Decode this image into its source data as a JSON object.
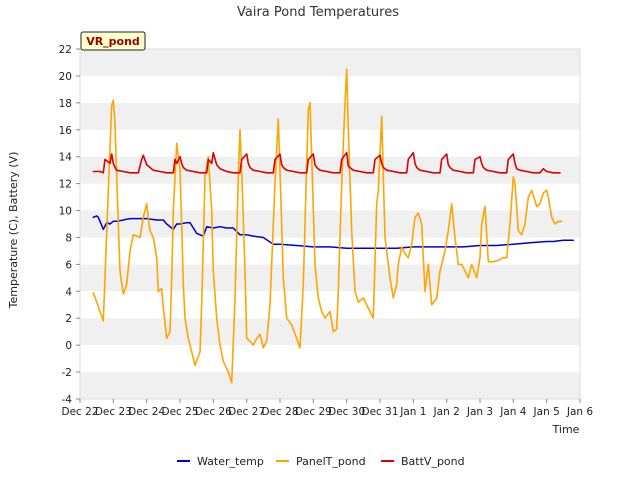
{
  "chart_data": {
    "type": "line",
    "title": "Vaira Pond Temperatures",
    "station_label": "VR_pond",
    "xlabel": "Time",
    "ylabel": "Temperature (C), Battery (V)",
    "xlim": [
      0,
      15
    ],
    "ylim": [
      -4,
      22
    ],
    "yticks": [
      -4,
      -2,
      0,
      2,
      4,
      6,
      8,
      10,
      12,
      14,
      16,
      18,
      20,
      22
    ],
    "xticks": [
      {
        "value": 0,
        "label": "Dec 22"
      },
      {
        "value": 1,
        "label": "Dec 23"
      },
      {
        "value": 2,
        "label": "Dec 24"
      },
      {
        "value": 3,
        "label": "Dec 25"
      },
      {
        "value": 4,
        "label": "Dec 26"
      },
      {
        "value": 5,
        "label": "Dec 27"
      },
      {
        "value": 6,
        "label": "Dec 28"
      },
      {
        "value": 7,
        "label": "Dec 29"
      },
      {
        "value": 8,
        "label": "Dec 30"
      },
      {
        "value": 9,
        "label": "Dec 31"
      },
      {
        "value": 10,
        "label": "Jan 1"
      },
      {
        "value": 11,
        "label": "Jan 2"
      },
      {
        "value": 12,
        "label": "Jan 3"
      },
      {
        "value": 13,
        "label": "Jan 4"
      },
      {
        "value": 14,
        "label": "Jan 5"
      },
      {
        "value": 15,
        "label": "Jan 6"
      }
    ],
    "grid": "horizontal-bands",
    "legend_position": "bottom",
    "series": [
      {
        "name": "Water_temp",
        "color": "#0000cc",
        "x": [
          0.4,
          0.5,
          0.55,
          0.6,
          0.7,
          0.8,
          0.9,
          1.0,
          1.1,
          1.3,
          1.5,
          1.8,
          2.0,
          2.3,
          2.5,
          2.6,
          2.8,
          2.9,
          3.0,
          3.2,
          3.3,
          3.5,
          3.7,
          3.8,
          4.0,
          4.2,
          4.4,
          4.6,
          4.8,
          5.0,
          5.2,
          5.5,
          5.8,
          6.0,
          6.5,
          7.0,
          7.5,
          8.0,
          8.5,
          9.0,
          9.5,
          10.0,
          10.5,
          11.0,
          11.5,
          12.0,
          12.5,
          13.0,
          13.5,
          14.0,
          14.2,
          14.5,
          14.8
        ],
        "y": [
          9.5,
          9.6,
          9.5,
          9.2,
          8.6,
          9.1,
          9.0,
          9.2,
          9.2,
          9.3,
          9.4,
          9.4,
          9.4,
          9.3,
          9.3,
          9.0,
          8.6,
          9.0,
          9.0,
          9.1,
          9.1,
          8.3,
          8.1,
          8.8,
          8.7,
          8.8,
          8.7,
          8.7,
          8.2,
          8.2,
          8.1,
          8.0,
          7.5,
          7.5,
          7.4,
          7.3,
          7.3,
          7.2,
          7.2,
          7.2,
          7.2,
          7.3,
          7.3,
          7.3,
          7.3,
          7.4,
          7.4,
          7.5,
          7.6,
          7.7,
          7.7,
          7.8,
          7.8
        ]
      },
      {
        "name": "PanelT_pond",
        "color": "#ffa500",
        "x": [
          0.4,
          0.5,
          0.6,
          0.7,
          0.75,
          0.85,
          0.95,
          1.0,
          1.05,
          1.1,
          1.2,
          1.3,
          1.4,
          1.5,
          1.6,
          1.8,
          1.9,
          2.0,
          2.05,
          2.1,
          2.2,
          2.3,
          2.35,
          2.45,
          2.5,
          2.6,
          2.7,
          2.75,
          2.8,
          2.9,
          3.0,
          3.05,
          3.1,
          3.15,
          3.25,
          3.35,
          3.45,
          3.6,
          3.65,
          3.75,
          3.85,
          3.95,
          4.0,
          4.1,
          4.2,
          4.3,
          4.45,
          4.55,
          4.65,
          4.75,
          4.8,
          4.85,
          4.95,
          5.0,
          5.1,
          5.2,
          5.3,
          5.4,
          5.5,
          5.6,
          5.7,
          5.85,
          5.95,
          6.0,
          6.1,
          6.2,
          6.35,
          6.5,
          6.6,
          6.7,
          6.8,
          6.85,
          6.9,
          6.95,
          7.05,
          7.15,
          7.25,
          7.35,
          7.5,
          7.6,
          7.7,
          7.75,
          7.85,
          7.95,
          8.0,
          8.05,
          8.15,
          8.25,
          8.35,
          8.5,
          8.6,
          8.7,
          8.8,
          8.9,
          8.95,
          9.05,
          9.15,
          9.3,
          9.4,
          9.5,
          9.55,
          9.65,
          9.75,
          9.85,
          9.95,
          10.05,
          10.15,
          10.25,
          10.35,
          10.45,
          10.55,
          10.7,
          10.8,
          10.9,
          10.95,
          11.05,
          11.15,
          11.25,
          11.35,
          11.45,
          11.55,
          11.65,
          11.75,
          11.9,
          12.0,
          12.05,
          12.15,
          12.25,
          12.4,
          12.55,
          12.7,
          12.8,
          12.9,
          13.0,
          13.05,
          13.15,
          13.25,
          13.35,
          13.45,
          13.55,
          13.7,
          13.8,
          13.9,
          14.0,
          14.05,
          14.15,
          14.25,
          14.35,
          14.45
        ],
        "y": [
          3.9,
          3.2,
          2.5,
          1.8,
          5.0,
          11.5,
          17.8,
          18.2,
          16.5,
          12.5,
          5.5,
          3.8,
          4.5,
          7.0,
          8.2,
          8.0,
          9.5,
          10.5,
          9.5,
          8.5,
          8.0,
          6.5,
          4.0,
          4.2,
          2.8,
          0.5,
          1.0,
          5.0,
          10.0,
          15.0,
          13.0,
          9.0,
          4.5,
          2.0,
          0.5,
          -0.5,
          -1.5,
          -0.5,
          3.0,
          12.5,
          14.0,
          10.0,
          5.5,
          2.0,
          0.0,
          -1.2,
          -2.0,
          -2.8,
          3.5,
          12.5,
          16.0,
          13.0,
          5.5,
          0.5,
          0.3,
          0.0,
          0.5,
          0.8,
          -0.2,
          0.3,
          3.0,
          12.0,
          16.8,
          13.0,
          5.0,
          2.0,
          1.5,
          0.5,
          -0.2,
          4.5,
          13.5,
          17.5,
          18.0,
          14.0,
          6.0,
          3.5,
          2.5,
          2.0,
          2.5,
          1.0,
          1.2,
          4.0,
          12.0,
          18.0,
          20.5,
          16.0,
          8.5,
          4.0,
          3.2,
          3.5,
          3.0,
          2.5,
          2.0,
          10.5,
          11.5,
          17.0,
          8.0,
          5.0,
          3.5,
          4.5,
          6.0,
          7.3,
          6.8,
          6.5,
          7.5,
          9.5,
          9.8,
          9.0,
          4.0,
          6.0,
          3.0,
          3.5,
          5.5,
          6.5,
          7.0,
          8.5,
          10.5,
          8.0,
          6.0,
          6.0,
          5.5,
          5.0,
          6.0,
          5.0,
          6.5,
          9.0,
          10.3,
          6.2,
          6.2,
          6.3,
          6.5,
          6.5,
          9.0,
          12.5,
          12.0,
          8.5,
          8.2,
          9.0,
          11.0,
          11.5,
          10.3,
          10.5,
          11.3,
          11.5,
          11.0,
          9.5,
          9.0,
          9.2,
          9.2
        ],
        "width": 1.6
      },
      {
        "name": "BattV_pond",
        "color": "#dd0000",
        "x": [
          0.4,
          0.6,
          0.7,
          0.75,
          0.9,
          0.95,
          1.0,
          1.05,
          1.1,
          1.3,
          1.5,
          1.75,
          1.85,
          1.9,
          2.0,
          2.1,
          2.2,
          2.4,
          2.6,
          2.8,
          2.85,
          2.9,
          3.0,
          3.05,
          3.1,
          3.2,
          3.4,
          3.6,
          3.8,
          3.85,
          3.95,
          4.0,
          4.1,
          4.2,
          4.4,
          4.6,
          4.8,
          4.85,
          5.0,
          5.05,
          5.1,
          5.2,
          5.4,
          5.6,
          5.8,
          5.85,
          6.0,
          6.05,
          6.1,
          6.2,
          6.4,
          6.6,
          6.8,
          6.85,
          7.0,
          7.05,
          7.1,
          7.2,
          7.4,
          7.6,
          7.8,
          7.85,
          8.0,
          8.05,
          8.1,
          8.2,
          8.4,
          8.6,
          8.8,
          8.85,
          9.0,
          9.05,
          9.1,
          9.2,
          9.4,
          9.6,
          9.8,
          9.85,
          10.0,
          10.05,
          10.1,
          10.2,
          10.4,
          10.6,
          10.8,
          10.85,
          11.0,
          11.05,
          11.1,
          11.2,
          11.4,
          11.6,
          11.8,
          11.85,
          12.0,
          12.05,
          12.1,
          12.2,
          12.4,
          12.6,
          12.8,
          12.85,
          13.0,
          13.05,
          13.1,
          13.2,
          13.4,
          13.6,
          13.8,
          13.9,
          14.0,
          14.2,
          14.4
        ],
        "y": [
          12.9,
          12.9,
          12.8,
          13.8,
          13.5,
          14.2,
          13.5,
          13.2,
          13.0,
          12.9,
          12.8,
          12.8,
          13.8,
          14.1,
          13.4,
          13.2,
          13.0,
          12.9,
          12.8,
          12.8,
          13.8,
          13.5,
          14.0,
          13.5,
          13.2,
          13.0,
          12.9,
          12.8,
          12.8,
          13.8,
          13.5,
          14.3,
          13.4,
          13.1,
          12.9,
          12.8,
          12.8,
          13.8,
          14.2,
          13.5,
          13.2,
          13.0,
          12.9,
          12.8,
          12.8,
          13.8,
          14.2,
          13.4,
          13.2,
          13.0,
          12.9,
          12.8,
          12.8,
          13.8,
          14.2,
          13.4,
          13.2,
          13.0,
          12.9,
          12.8,
          12.8,
          13.8,
          14.3,
          13.3,
          13.2,
          13.0,
          12.9,
          12.8,
          12.8,
          13.8,
          14.1,
          13.5,
          13.2,
          13.0,
          12.9,
          12.8,
          12.8,
          13.8,
          14.3,
          13.5,
          13.2,
          13.0,
          12.9,
          12.8,
          12.8,
          13.8,
          14.2,
          13.4,
          13.2,
          13.0,
          12.9,
          12.8,
          12.8,
          13.8,
          14.0,
          13.5,
          13.2,
          13.0,
          12.9,
          12.8,
          12.8,
          13.8,
          14.2,
          13.5,
          13.1,
          13.0,
          12.9,
          12.8,
          12.8,
          13.1,
          12.9,
          12.8,
          12.8
        ],
        "width": 1.6
      }
    ]
  }
}
